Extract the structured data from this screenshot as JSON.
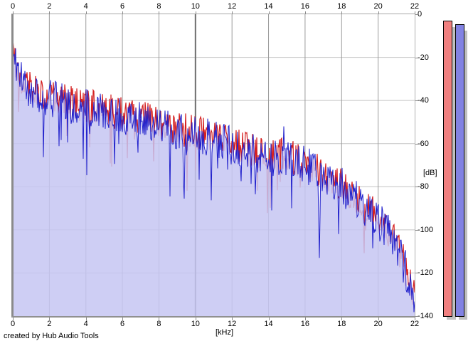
{
  "window": {
    "credit": "created by Hub Audio Tools"
  },
  "chart": {
    "xlabel": "[kHz]",
    "ylabel": "[dB]",
    "top_ticks": [
      "0",
      "2",
      "4",
      "6",
      "8",
      "10",
      "12",
      "14",
      "16",
      "18",
      "20",
      "22"
    ],
    "bottom_ticks": [
      "0",
      "2",
      "4",
      "6",
      "8",
      "10",
      "12",
      "14",
      "16",
      "18",
      "20",
      "22"
    ],
    "db_ticks": [
      "0",
      "-20",
      "-40",
      "-60",
      "-80",
      "-100",
      "-120",
      "-140"
    ],
    "colors": {
      "fill": "#c6c6f2",
      "trace_blue": "#2222cc",
      "trace_red": "#d42020",
      "grid_horizontal": "#c4c4c4",
      "grid_vertical": "#9a9a9a",
      "grid_vertical_emphasis": "#6e6e6e",
      "axis": "#8a8a8a"
    }
  },
  "chart_data": {
    "type": "area",
    "title": "",
    "xlabel": "[kHz]",
    "ylabel": "[dB]",
    "xlim": [
      0,
      22
    ],
    "ylim": [
      -140,
      0
    ],
    "grid": "on",
    "x_tick_step_khz": 2,
    "y_tick_step_db": 20,
    "description": "audio frequency spectrum, two overlaid channel traces (red behind, blue with lavender area fill), noisy descending envelope",
    "series": [
      {
        "name": "channel-red",
        "color": "#d42020",
        "style": "line",
        "envelope_khz": [
          0,
          0.2,
          0.5,
          1,
          2,
          3,
          4,
          5,
          6,
          7,
          8,
          9,
          10,
          11,
          12,
          13,
          14,
          15,
          16,
          17,
          18,
          19,
          20,
          20.5,
          21,
          21.5,
          22
        ],
        "envelope_db": [
          -14,
          -25,
          -30,
          -34,
          -38,
          -41,
          -42,
          -44,
          -46,
          -48,
          -51,
          -53,
          -55,
          -57,
          -60,
          -63,
          -65,
          -65,
          -69,
          -74,
          -79,
          -86,
          -95,
          -99,
          -107,
          -117,
          -132
        ]
      },
      {
        "name": "channel-blue",
        "color": "#2222cc",
        "style": "area-line",
        "fill": "#c6c6f2",
        "envelope_khz": [
          0,
          0.2,
          0.5,
          1,
          2,
          3,
          4,
          5,
          6,
          7,
          8,
          9,
          10,
          11,
          12,
          13,
          14,
          15,
          16,
          17,
          18,
          19,
          20,
          20.5,
          21,
          21.5,
          22
        ],
        "envelope_db": [
          -15,
          -26,
          -31,
          -35,
          -39,
          -42,
          -43,
          -45,
          -47,
          -49,
          -52,
          -54,
          -56,
          -58,
          -61,
          -64,
          -66,
          -66,
          -70,
          -75,
          -80,
          -87,
          -96,
          -100,
          -108,
          -118,
          -133
        ]
      }
    ],
    "noise": {
      "up_db": 9,
      "down_db": 26,
      "deep_dip_probability": 0.07,
      "seed": 1337
    },
    "features": {
      "peaks": [
        {
          "khz": 14.85,
          "db": -52
        }
      ],
      "dips": [
        {
          "khz": 16.8,
          "db": -113
        }
      ]
    }
  },
  "meters": {
    "red": {
      "name": "level-meter-red",
      "color": "#f08080",
      "top_db": -3
    },
    "blue": {
      "name": "level-meter-blue",
      "color": "#8282e2",
      "top_db": -4.5
    },
    "shadow_color": "#c0c0c0"
  }
}
